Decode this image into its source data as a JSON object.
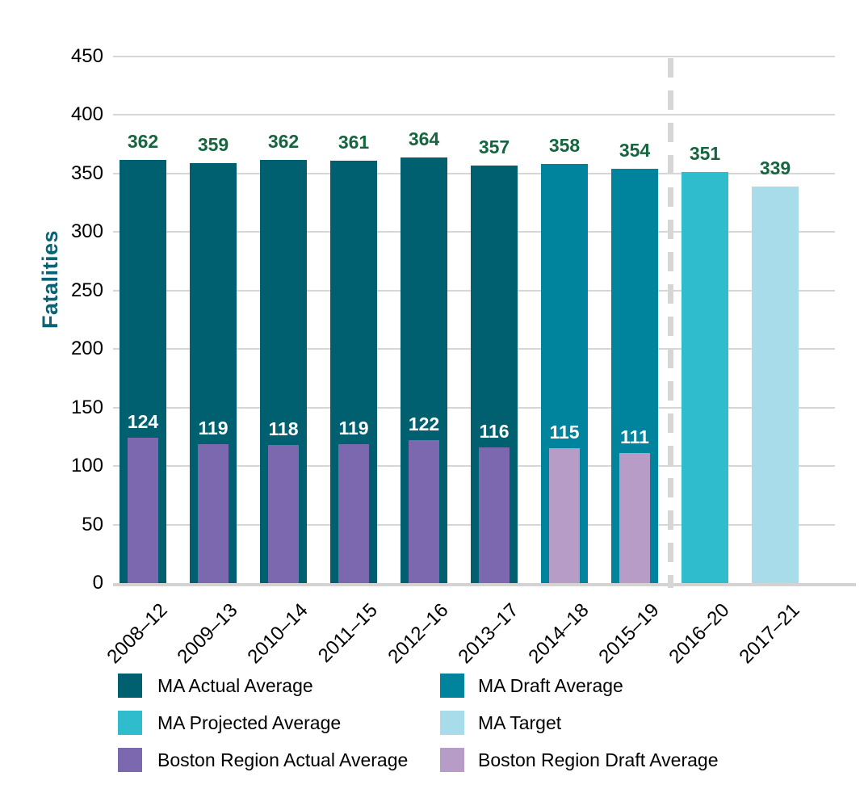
{
  "chart_data": {
    "type": "bar",
    "title": "",
    "xlabel": "",
    "ylabel": "Fatalities",
    "ylim": [
      0,
      450
    ],
    "yticks": [
      0,
      50,
      100,
      150,
      200,
      250,
      300,
      350,
      400,
      450
    ],
    "grid": true,
    "legend_position": "bottom",
    "categories": [
      "2008–12",
      "2009–13",
      "2010–14",
      "2011–15",
      "2012–16",
      "2013–17",
      "2014–18",
      "2015–19",
      "2016–20",
      "2017–21"
    ],
    "series": [
      {
        "name": "MA Actual Average",
        "color": "#01606F",
        "values": [
          362,
          359,
          362,
          361,
          364,
          357,
          null,
          null,
          null,
          null
        ]
      },
      {
        "name": "MA Draft Average",
        "color": "#00839D",
        "values": [
          null,
          null,
          null,
          null,
          null,
          null,
          358,
          354,
          null,
          null
        ]
      },
      {
        "name": "MA Projected Average",
        "color": "#2FBCCC",
        "values": [
          null,
          null,
          null,
          null,
          null,
          null,
          null,
          null,
          351,
          null
        ]
      },
      {
        "name": "MA Target",
        "color": "#A9DCEA",
        "values": [
          null,
          null,
          null,
          null,
          null,
          null,
          null,
          null,
          null,
          339
        ]
      },
      {
        "name": "Boston Region Actual Average",
        "color": "#7B68AE",
        "values": [
          124,
          119,
          118,
          119,
          122,
          116,
          null,
          null,
          null,
          null
        ]
      },
      {
        "name": "Boston Region Draft Average",
        "color": "#B89CC8",
        "values": [
          null,
          null,
          null,
          null,
          null,
          null,
          115,
          111,
          null,
          null
        ]
      }
    ],
    "annotations": {
      "ma_value_labels": [
        362,
        359,
        362,
        361,
        364,
        357,
        358,
        354,
        351,
        339
      ],
      "boston_value_labels": [
        124,
        119,
        118,
        119,
        122,
        116,
        115,
        111,
        null,
        null
      ],
      "divider_between": [
        "2015–19",
        "2016–20"
      ]
    },
    "colors": {
      "ma_label_text": "#17653F",
      "boston_label_text": "#FFFFFF",
      "gridline": "#D6D6D6",
      "axis_line": "#D3D3D3",
      "divider": "#D6D6D6",
      "axis_title_text": "#0A6374",
      "tick_text": "#000000"
    }
  }
}
